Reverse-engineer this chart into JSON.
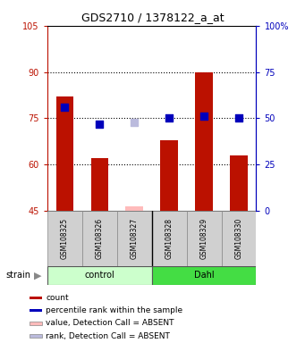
{
  "title": "GDS2710 / 1378122_a_at",
  "samples": [
    "GSM108325",
    "GSM108326",
    "GSM108327",
    "GSM108328",
    "GSM108329",
    "GSM108330"
  ],
  "groups": [
    "control",
    "control",
    "control",
    "Dahl",
    "Dahl",
    "Dahl"
  ],
  "bar_values": [
    82,
    62,
    46.5,
    68,
    90,
    63
  ],
  "bar_absent": [
    false,
    false,
    true,
    false,
    false,
    false
  ],
  "rank_values": [
    56,
    47,
    48,
    50,
    51,
    50
  ],
  "rank_absent": [
    false,
    false,
    true,
    false,
    false,
    false
  ],
  "bar_color": "#bb1100",
  "bar_absent_color": "#ffbbbb",
  "rank_color": "#0000bb",
  "rank_absent_color": "#bbbbdd",
  "ylim_left": [
    45,
    105
  ],
  "ylim_right": [
    0,
    100
  ],
  "yticks_left": [
    45,
    60,
    75,
    90,
    105
  ],
  "ytick_labels_left": [
    "45",
    "60",
    "75",
    "90",
    "105"
  ],
  "yticks_right": [
    0,
    25,
    50,
    75,
    100
  ],
  "ytick_labels_right": [
    "0",
    "25",
    "50",
    "75",
    "100%"
  ],
  "hlines": [
    60,
    75,
    90
  ],
  "bar_width": 0.5,
  "rank_marker_size": 40,
  "legend_items": [
    {
      "label": "count",
      "color": "#bb1100",
      "absent": false
    },
    {
      "label": "percentile rank within the sample",
      "color": "#0000bb",
      "absent": false
    },
    {
      "label": "value, Detection Call = ABSENT",
      "color": "#ffbbbb",
      "absent": true
    },
    {
      "label": "rank, Detection Call = ABSENT",
      "color": "#bbbbdd",
      "absent": true
    }
  ]
}
